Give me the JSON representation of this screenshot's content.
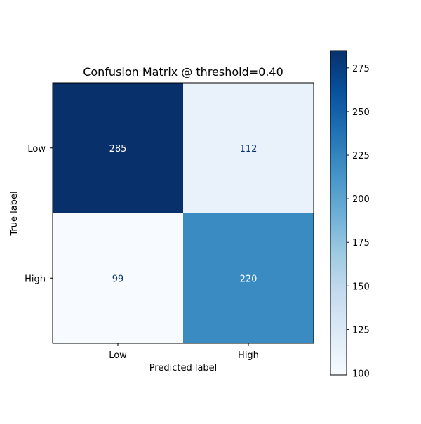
{
  "chart_data": {
    "type": "heatmap",
    "title": "Confusion Matrix @ threshold=0.40",
    "xlabel": "Predicted label",
    "ylabel": "True label",
    "x_categories": [
      "Low",
      "High"
    ],
    "y_categories": [
      "Low",
      "High"
    ],
    "values": [
      [
        285,
        112
      ],
      [
        99,
        220
      ]
    ],
    "colorbar": {
      "min": 99,
      "max": 285,
      "ticks": [
        100,
        125,
        150,
        175,
        200,
        225,
        250,
        275
      ],
      "colormap": "Blues"
    },
    "text_colors": {
      "light": "#ffffff",
      "dark": "#08306b"
    },
    "grid": false
  }
}
